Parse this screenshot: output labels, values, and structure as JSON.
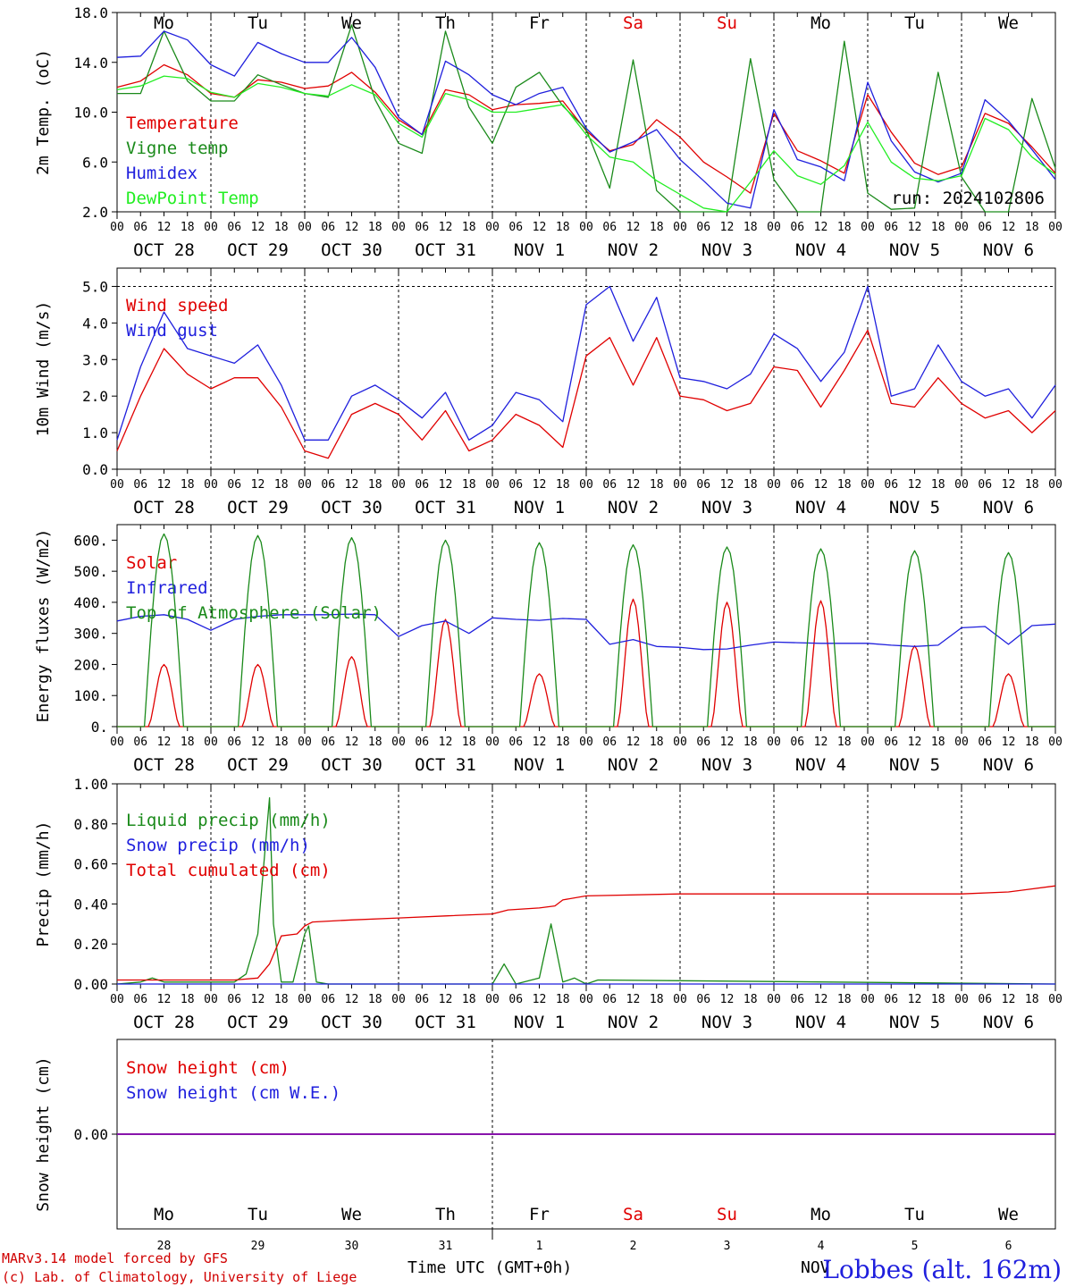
{
  "station": "Lobbes (alt. 162m)",
  "footer": [
    "MARv3.14 model forced by GFS",
    "(c) Lab. of Climatology, University of Liege"
  ],
  "x_title": "Time UTC (GMT+0h)",
  "run_label": "run: 2024102806",
  "days": [
    {
      "date": "OCT 28",
      "dow": "Mo",
      "num": "28",
      "color": "#000000"
    },
    {
      "date": "OCT 29",
      "dow": "Tu",
      "num": "29",
      "color": "#000000"
    },
    {
      "date": "OCT 30",
      "dow": "We",
      "num": "30",
      "color": "#000000"
    },
    {
      "date": "OCT 31",
      "dow": "Th",
      "num": "31",
      "color": "#000000"
    },
    {
      "date": "NOV  1",
      "dow": "Fr",
      "num": "1",
      "color": "#000000"
    },
    {
      "date": "NOV  2",
      "dow": "Sa",
      "num": "2",
      "color": "#e00000"
    },
    {
      "date": "NOV  3",
      "dow": "Su",
      "num": "3",
      "color": "#e00000"
    },
    {
      "date": "NOV  4",
      "dow": "Mo",
      "num": "4",
      "color": "#000000"
    },
    {
      "date": "NOV  5",
      "dow": "Tu",
      "num": "5",
      "color": "#000000"
    },
    {
      "date": "NOV  6",
      "dow": "We",
      "num": "6",
      "color": "#000000"
    }
  ],
  "hour_ticks": [
    "00",
    "06",
    "12",
    "18"
  ],
  "last_tick": "00",
  "nov_label": "NOV",
  "colors": {
    "red": "#e00000",
    "green": "#1a8a1a",
    "blue": "#1f1fdd",
    "lightgreen": "#22ee22",
    "purple": "#8800aa"
  },
  "chart_data": [
    {
      "type": "line",
      "ylabel": "2m Temp. (oC)",
      "ylim": [
        2.0,
        18.0
      ],
      "yticks": [
        "2.0",
        "6.0",
        "10.0",
        "14.0",
        "18.0"
      ],
      "ytick_values": [
        2,
        6,
        10,
        14,
        18
      ],
      "xlim_hours": [
        0,
        240
      ],
      "show_dow": true,
      "series": [
        {
          "name": "Temperature",
          "color": "red",
          "x": [
            0,
            6,
            12,
            18,
            24,
            30,
            36,
            42,
            48,
            54,
            60,
            66,
            72,
            78,
            84,
            90,
            96,
            102,
            108,
            114,
            120,
            126,
            132,
            138,
            144,
            150,
            156,
            162,
            168,
            174,
            180,
            186,
            192,
            198,
            204,
            210,
            216,
            222,
            228,
            234,
            240
          ],
          "y": [
            12.0,
            12.5,
            13.8,
            13.0,
            11.5,
            11.2,
            12.6,
            12.4,
            11.9,
            12.1,
            13.2,
            11.6,
            9.4,
            8.2,
            11.8,
            11.4,
            10.2,
            10.6,
            10.7,
            10.9,
            8.5,
            6.9,
            7.4,
            9.4,
            8.0,
            6.0,
            4.8,
            3.5,
            9.9,
            6.9,
            6.1,
            5.1,
            11.4,
            8.4,
            5.9,
            5.0,
            5.6,
            9.9,
            9.1,
            7.2,
            5.1
          ],
          "y2": [
            8.3,
            7.0,
            6.0
          ]
        },
        {
          "name": "Vigne temp",
          "color": "green",
          "x": [
            0,
            6,
            12,
            18,
            24,
            30,
            36,
            42,
            48,
            54,
            60,
            66,
            72,
            78,
            84,
            90,
            96,
            102,
            108,
            114,
            120,
            126,
            132,
            138,
            144,
            150,
            156,
            162,
            168,
            174,
            180,
            186,
            192,
            198,
            204,
            210,
            216,
            222,
            228,
            234,
            240
          ],
          "y": [
            11.5,
            11.5,
            16.5,
            12.5,
            10.9,
            10.9,
            13.0,
            12.2,
            11.5,
            11.2,
            17.0,
            11.0,
            7.5,
            6.7,
            16.5,
            10.4,
            7.5,
            12.0,
            13.2,
            10.5,
            8.6,
            3.9,
            14.2,
            3.7,
            1.8,
            1.4,
            1.5,
            14.3,
            4.6,
            1.7,
            2.0,
            15.7,
            3.5,
            2.2,
            2.3,
            13.2,
            4.8,
            1.8,
            1.8,
            11.1,
            5.5
          ],
          "y2": []
        },
        {
          "name": "Humidex",
          "color": "blue",
          "x": [
            0,
            6,
            12,
            18,
            24,
            30,
            36,
            42,
            48,
            54,
            60,
            66,
            72,
            78,
            84,
            90,
            96,
            102,
            108,
            114,
            120,
            126,
            132,
            138,
            144,
            150,
            156,
            162,
            168,
            174,
            180,
            186,
            192,
            198,
            204,
            210,
            216,
            222,
            228,
            234,
            240
          ],
          "y": [
            14.4,
            14.5,
            16.5,
            15.8,
            13.8,
            12.9,
            15.6,
            14.7,
            14.0,
            14.0,
            16.0,
            13.6,
            9.6,
            8.2,
            14.1,
            13.0,
            11.4,
            10.6,
            11.5,
            12.0,
            8.7,
            6.8,
            7.6,
            8.6,
            6.2,
            4.5,
            2.7,
            2.3,
            10.2,
            6.2,
            5.6,
            4.5,
            12.4,
            7.7,
            5.2,
            4.4,
            5.1,
            11.0,
            9.3,
            7.0,
            4.6
          ],
          "y2": [
            8.5,
            7.0,
            5.8
          ]
        },
        {
          "name": "DewPoint Temp",
          "color": "lightgreen",
          "x": [
            0,
            6,
            12,
            18,
            24,
            30,
            36,
            42,
            48,
            54,
            60,
            66,
            72,
            78,
            84,
            90,
            96,
            102,
            108,
            114,
            120,
            126,
            132,
            138,
            144,
            150,
            156,
            162,
            168,
            174,
            180,
            186,
            192,
            198,
            204,
            210,
            216,
            222,
            228,
            234,
            240
          ],
          "y": [
            11.8,
            12.1,
            12.9,
            12.7,
            11.6,
            11.2,
            12.3,
            12.0,
            11.5,
            11.3,
            12.2,
            11.4,
            9.1,
            8.0,
            11.5,
            11.0,
            10.0,
            10.0,
            10.3,
            10.6,
            8.2,
            6.4,
            6.0,
            4.5,
            3.4,
            2.3,
            1.6,
            4.4,
            6.9,
            4.9,
            4.2,
            5.7,
            9.2,
            6.0,
            4.7,
            4.5,
            4.9,
            9.5,
            8.6,
            6.4,
            5.0
          ],
          "y2": []
        }
      ],
      "legend_colors": [
        "red",
        "green",
        "blue",
        "lightgreen"
      ]
    },
    {
      "type": "line",
      "ylabel": "10m Wind (m/s)",
      "ylim": [
        0.0,
        5.5
      ],
      "yticks": [
        "0.0",
        "1.0",
        "2.0",
        "3.0",
        "4.0",
        "5.0"
      ],
      "ytick_values": [
        0,
        1,
        2,
        3,
        4,
        5
      ],
      "dashed_y": 5.0,
      "xlim_hours": [
        0,
        240
      ],
      "series": [
        {
          "name": "Wind speed",
          "color": "red",
          "x": [
            0,
            6,
            12,
            18,
            24,
            30,
            36,
            42,
            48,
            54,
            60,
            66,
            72,
            78,
            84,
            90,
            96,
            102,
            108,
            114,
            120,
            126,
            132,
            138,
            144,
            150,
            156,
            162,
            168,
            174,
            180,
            186,
            192,
            198,
            204,
            210,
            216,
            222,
            228,
            234,
            240
          ],
          "y": [
            0.5,
            2.0,
            3.3,
            2.6,
            2.2,
            2.5,
            2.5,
            1.7,
            0.5,
            0.3,
            1.5,
            1.8,
            1.5,
            0.8,
            1.6,
            0.5,
            0.8,
            1.5,
            1.2,
            0.6,
            3.1,
            3.6,
            2.3,
            3.6,
            2.0,
            1.9,
            1.6,
            1.8,
            2.8,
            2.7,
            1.7,
            2.7,
            3.8,
            1.8,
            1.7,
            2.5,
            1.8,
            1.4,
            1.6,
            1.0,
            1.6
          ]
        },
        {
          "name": "Wind gust",
          "color": "blue",
          "x": [
            0,
            6,
            12,
            18,
            24,
            30,
            36,
            42,
            48,
            54,
            60,
            66,
            72,
            78,
            84,
            90,
            96,
            102,
            108,
            114,
            120,
            126,
            132,
            138,
            144,
            150,
            156,
            162,
            168,
            174,
            180,
            186,
            192,
            198,
            204,
            210,
            216,
            222,
            228,
            234,
            240
          ],
          "y": [
            0.8,
            2.8,
            4.3,
            3.3,
            3.1,
            2.9,
            3.4,
            2.3,
            0.8,
            0.8,
            2.0,
            2.3,
            1.9,
            1.4,
            2.1,
            0.8,
            1.2,
            2.1,
            1.9,
            1.3,
            4.5,
            5.0,
            3.5,
            4.7,
            2.5,
            2.4,
            2.2,
            2.6,
            3.7,
            3.3,
            2.4,
            3.2,
            5.0,
            2.0,
            2.2,
            3.4,
            2.4,
            2.0,
            2.2,
            1.4,
            2.3
          ]
        }
      ]
    },
    {
      "type": "line",
      "ylabel": "Energy fluxes (W/m2)",
      "ylim": [
        0,
        650
      ],
      "yticks": [
        "0.",
        "100.",
        "200.",
        "300.",
        "400.",
        "500.",
        "600."
      ],
      "ytick_values": [
        0,
        100,
        200,
        300,
        400,
        500,
        600
      ],
      "xlim_hours": [
        0,
        240
      ],
      "series": [
        {
          "name": "Solar",
          "color": "red",
          "peaks": [
            200,
            200,
            225,
            345,
            170,
            410,
            400,
            405,
            260,
            170
          ]
        },
        {
          "name": "Infrared",
          "color": "blue",
          "x": [
            0,
            6,
            12,
            18,
            24,
            30,
            36,
            42,
            48,
            54,
            60,
            66,
            72,
            78,
            84,
            90,
            96,
            102,
            108,
            114,
            120,
            126,
            132,
            138,
            144,
            150,
            156,
            162,
            168,
            174,
            180,
            186,
            192,
            198,
            204,
            210,
            216,
            222,
            228,
            234,
            240
          ],
          "y": [
            340,
            355,
            360,
            345,
            310,
            345,
            355,
            360,
            360,
            360,
            362,
            360,
            290,
            325,
            340,
            300,
            350,
            345,
            342,
            348,
            345,
            265,
            280,
            258,
            255,
            248,
            250,
            262,
            272,
            270,
            268,
            268,
            268,
            262,
            258,
            262,
            318,
            322,
            265,
            325,
            330
          ]
        },
        {
          "name": "Top of Atmosphere (Solar)",
          "color": "green",
          "peaks": [
            620,
            615,
            608,
            600,
            592,
            585,
            578,
            572,
            566,
            560
          ]
        }
      ]
    },
    {
      "type": "line",
      "ylabel": "Precip (mm/h)",
      "ylim": [
        0.0,
        1.0
      ],
      "yticks": [
        "0.00",
        "0.20",
        "0.40",
        "0.60",
        "0.80",
        "1.00"
      ],
      "ytick_values": [
        0,
        0.2,
        0.4,
        0.6,
        0.8,
        1.0
      ],
      "xlim_hours": [
        0,
        240
      ],
      "series": [
        {
          "name": "Liquid precip (mm/h)",
          "color": "green",
          "x": [
            0,
            6,
            9,
            12,
            30,
            33,
            36,
            39,
            40,
            42,
            45,
            48,
            49,
            51,
            54,
            96,
            99,
            102,
            108,
            111,
            114,
            117,
            120,
            123,
            240
          ],
          "y": [
            0.0,
            0.01,
            0.03,
            0.01,
            0.01,
            0.05,
            0.25,
            0.93,
            0.3,
            0.01,
            0.01,
            0.25,
            0.29,
            0.01,
            0.0,
            0.0,
            0.1,
            0.0,
            0.03,
            0.3,
            0.01,
            0.03,
            0.0,
            0.02,
            0.0
          ]
        },
        {
          "name": "Snow precip (mm/h)",
          "color": "blue",
          "x": [
            0,
            240
          ],
          "y": [
            0.0,
            0.0
          ]
        },
        {
          "name": "Total cumulated (cm)",
          "color": "red",
          "x": [
            0,
            30,
            36,
            39,
            42,
            46,
            48,
            50,
            60,
            72,
            84,
            96,
            100,
            108,
            112,
            114,
            120,
            144,
            168,
            192,
            216,
            228,
            240
          ],
          "y": [
            0.02,
            0.02,
            0.03,
            0.1,
            0.24,
            0.25,
            0.29,
            0.31,
            0.32,
            0.33,
            0.34,
            0.35,
            0.37,
            0.38,
            0.39,
            0.42,
            0.44,
            0.45,
            0.45,
            0.45,
            0.45,
            0.46,
            0.49
          ]
        }
      ]
    },
    {
      "type": "line",
      "ylabel": "Snow height (cm)",
      "ylim": [
        -1,
        1
      ],
      "yticks": [
        "0.00"
      ],
      "ytick_values": [
        0
      ],
      "xlim_hours": [
        0,
        240
      ],
      "series": [
        {
          "name": "Snow height (cm)",
          "color": "red",
          "x": [
            0,
            240
          ],
          "y": [
            0,
            0
          ]
        },
        {
          "name": "Snow height (cm W.E.)",
          "color": "blue",
          "x": [
            0,
            240
          ],
          "y": [
            0,
            0
          ]
        }
      ]
    }
  ]
}
